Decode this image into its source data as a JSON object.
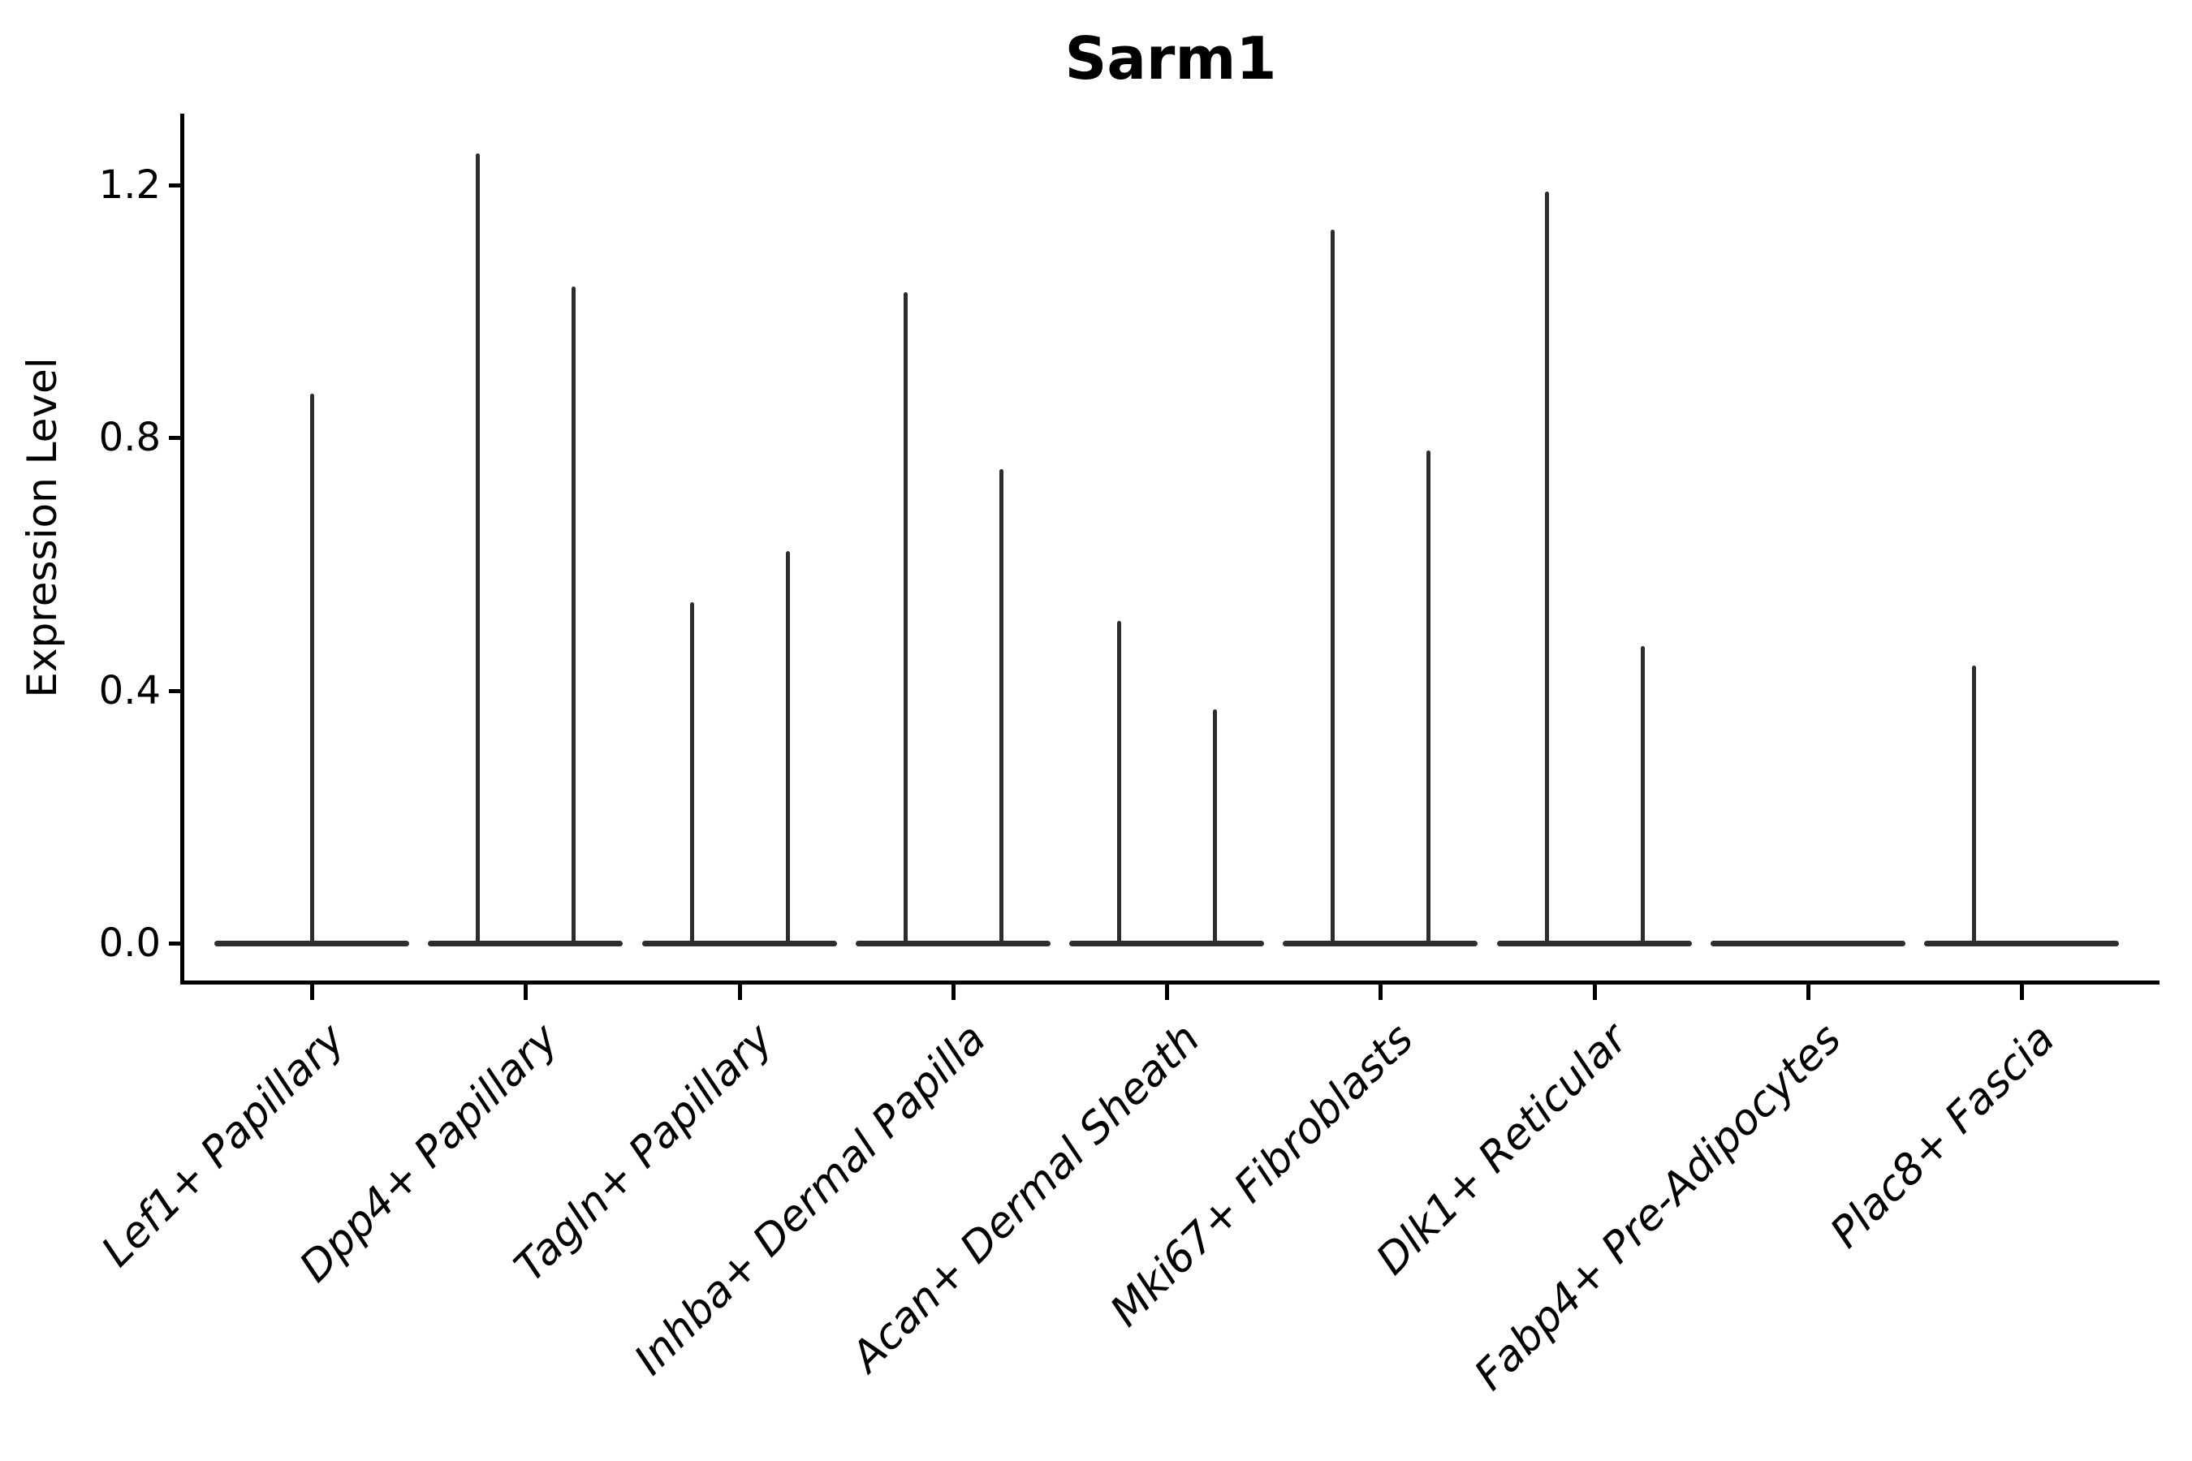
{
  "figure": {
    "title": "Sarm1",
    "background_color": "#ffffff"
  },
  "chart_data": {
    "type": "violin",
    "title": "Sarm1",
    "xlabel": "",
    "ylabel": "Expression Level",
    "ytick_labels": [
      "0.0",
      "0.4",
      "0.8",
      "1.2"
    ],
    "ytick_values": [
      0.0,
      0.4,
      0.8,
      1.2
    ],
    "ylim": [
      -0.06,
      1.31
    ],
    "grid": false,
    "legend": false,
    "x_labels_rotation_deg": 45,
    "categories": [
      "Lef1+ Papillary",
      "Dpp4+ Papillary",
      "Tagln+ Papillary",
      "Inhba+ Dermal Papilla",
      "Acan+ Dermal Sheath",
      "Mki67+ Fibroblasts",
      "Dlk1+ Reticular",
      "Fabp4+ Pre-Adipocytes",
      "Plac8+ Fascia"
    ],
    "violins": [
      {
        "category": "Lef1+ Papillary",
        "spikes": [
          {
            "offset": 0,
            "max_expression": 0.87
          }
        ]
      },
      {
        "category": "Dpp4+ Papillary",
        "spikes": [
          {
            "offset": -59,
            "max_expression": 1.25
          },
          {
            "offset": 59,
            "max_expression": 1.04
          }
        ]
      },
      {
        "category": "Tagln+ Papillary",
        "spikes": [
          {
            "offset": -59,
            "max_expression": 0.54
          },
          {
            "offset": 59,
            "max_expression": 0.62
          }
        ]
      },
      {
        "category": "Inhba+ Dermal Papilla",
        "spikes": [
          {
            "offset": -59,
            "max_expression": 1.03
          },
          {
            "offset": 59,
            "max_expression": 0.75
          }
        ]
      },
      {
        "category": "Acan+ Dermal Sheath",
        "spikes": [
          {
            "offset": -59,
            "max_expression": 0.51
          },
          {
            "offset": 59,
            "max_expression": 0.37
          }
        ]
      },
      {
        "category": "Mki67+ Fibroblasts",
        "spikes": [
          {
            "offset": -59,
            "max_expression": 1.13
          },
          {
            "offset": 59,
            "max_expression": 0.78
          }
        ]
      },
      {
        "category": "Dlk1+ Reticular",
        "spikes": [
          {
            "offset": -59,
            "max_expression": 1.19
          },
          {
            "offset": 59,
            "max_expression": 0.47
          }
        ]
      },
      {
        "category": "Fabp4+ Pre-Adipocytes",
        "spikes": []
      },
      {
        "category": "Plac8+ Fascia",
        "spikes": [
          {
            "offset": -59,
            "max_expression": 0.44
          }
        ]
      }
    ],
    "colors": {
      "violin": "#2d2d2d",
      "axis": "#000000",
      "text": "#000000"
    }
  }
}
